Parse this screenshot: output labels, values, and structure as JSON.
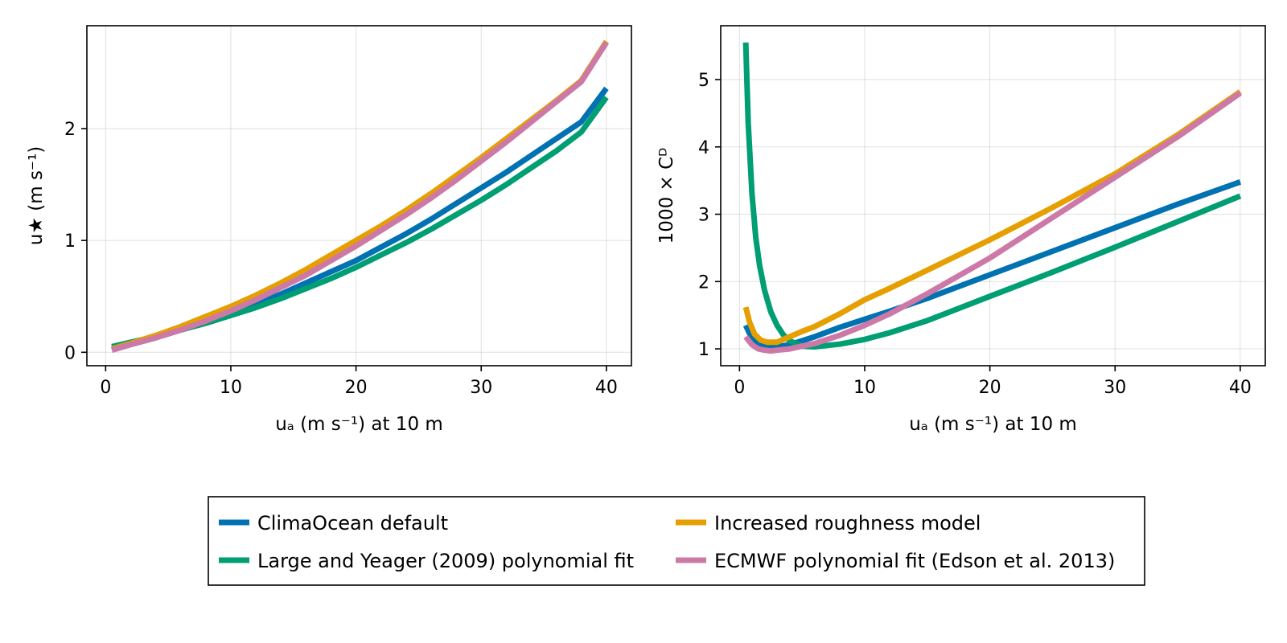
{
  "chart_data": [
    {
      "type": "line",
      "panel": "left",
      "xlabel": "uₐ (m s⁻¹) at 10 m",
      "ylabel": "u★ (m s⁻¹)",
      "xlim": [
        -1.5,
        42
      ],
      "ylim": [
        -0.12,
        2.92
      ],
      "xticks": [
        0,
        10,
        20,
        30,
        40
      ],
      "yticks": [
        0,
        1,
        2
      ],
      "grid": true,
      "series": [
        {
          "name": "ClimaOcean default",
          "color": "#0072b2",
          "x": [
            0.5,
            2,
            4,
            6,
            8,
            10,
            12,
            14,
            16,
            18,
            20,
            22,
            24,
            26,
            28,
            30,
            32,
            34,
            36,
            38,
            40
          ],
          "y": [
            0.02,
            0.07,
            0.13,
            0.2,
            0.27,
            0.35,
            0.43,
            0.52,
            0.62,
            0.72,
            0.82,
            0.94,
            1.06,
            1.19,
            1.33,
            1.47,
            1.61,
            1.76,
            1.91,
            2.06,
            2.36
          ]
        },
        {
          "name": "Large and Yeager (2009) polynomial fit",
          "color": "#009e73",
          "x": [
            0.5,
            2,
            4,
            6,
            8,
            10,
            12,
            14,
            16,
            18,
            20,
            22,
            24,
            26,
            28,
            30,
            32,
            34,
            36,
            38,
            40
          ],
          "y": [
            0.05,
            0.09,
            0.14,
            0.2,
            0.26,
            0.33,
            0.4,
            0.48,
            0.57,
            0.66,
            0.76,
            0.87,
            0.98,
            1.1,
            1.23,
            1.36,
            1.5,
            1.65,
            1.8,
            1.97,
            2.28
          ]
        },
        {
          "name": "Increased roughness model",
          "color": "#e69f00",
          "x": [
            0.5,
            2,
            4,
            6,
            8,
            10,
            12,
            14,
            16,
            18,
            20,
            22,
            24,
            26,
            28,
            30,
            32,
            34,
            36,
            38,
            40
          ],
          "y": [
            0.03,
            0.08,
            0.15,
            0.23,
            0.32,
            0.41,
            0.51,
            0.62,
            0.74,
            0.87,
            1.0,
            1.13,
            1.27,
            1.42,
            1.58,
            1.74,
            1.91,
            2.08,
            2.25,
            2.43,
            2.78
          ]
        },
        {
          "name": "ECMWF polynomial fit (Edson et al. 2013)",
          "color": "#cc79a7",
          "x": [
            0.5,
            2,
            4,
            6,
            8,
            10,
            12,
            14,
            16,
            18,
            20,
            22,
            24,
            26,
            28,
            30,
            32,
            34,
            36,
            38,
            40
          ],
          "y": [
            0.02,
            0.07,
            0.13,
            0.2,
            0.28,
            0.37,
            0.47,
            0.58,
            0.69,
            0.82,
            0.95,
            1.09,
            1.23,
            1.38,
            1.54,
            1.71,
            1.88,
            2.06,
            2.24,
            2.42,
            2.77
          ]
        }
      ]
    },
    {
      "type": "line",
      "panel": "right",
      "xlabel": "uₐ (m s⁻¹) at 10 m",
      "ylabel": "1000 × Cᴰ",
      "xlim": [
        -1.5,
        42
      ],
      "ylim": [
        0.75,
        5.8
      ],
      "xticks": [
        0,
        10,
        20,
        30,
        40
      ],
      "yticks": [
        1,
        2,
        3,
        4,
        5
      ],
      "grid": true,
      "series": [
        {
          "name": "ClimaOcean default",
          "color": "#0072b2",
          "x": [
            0.5,
            1,
            1.5,
            2,
            3,
            4,
            5,
            6,
            8,
            10,
            12,
            15,
            20,
            25,
            30,
            35,
            40
          ],
          "y": [
            1.35,
            1.15,
            1.06,
            1.03,
            1.03,
            1.06,
            1.12,
            1.18,
            1.32,
            1.44,
            1.56,
            1.75,
            2.1,
            2.45,
            2.8,
            3.15,
            3.48
          ]
        },
        {
          "name": "Large and Yeager (2009) polynomial fit",
          "color": "#009e73",
          "x": [
            0.5,
            0.7,
            1,
            1.3,
            1.6,
            2,
            2.5,
            3,
            3.5,
            4,
            5,
            6,
            8,
            10,
            12,
            15,
            20,
            25,
            30,
            35,
            40
          ],
          "y": [
            5.55,
            4.35,
            3.3,
            2.65,
            2.25,
            1.87,
            1.55,
            1.35,
            1.21,
            1.12,
            1.04,
            1.03,
            1.07,
            1.14,
            1.24,
            1.42,
            1.78,
            2.14,
            2.51,
            2.89,
            3.27
          ]
        },
        {
          "name": "Increased roughness model",
          "color": "#e69f00",
          "x": [
            0.5,
            0.8,
            1.2,
            1.7,
            2.2,
            3,
            4,
            5,
            6,
            8,
            10,
            12,
            15,
            20,
            25,
            30,
            35,
            40
          ],
          "y": [
            1.62,
            1.4,
            1.22,
            1.13,
            1.1,
            1.1,
            1.18,
            1.26,
            1.33,
            1.52,
            1.73,
            1.9,
            2.17,
            2.62,
            3.1,
            3.6,
            4.18,
            4.82
          ]
        },
        {
          "name": "ECMWF polynomial fit (Edson et al. 2013)",
          "color": "#cc79a7",
          "x": [
            0.5,
            1,
            1.5,
            2,
            2.5,
            3,
            4,
            5,
            6,
            8,
            10,
            12,
            15,
            20,
            25,
            30,
            35,
            40
          ],
          "y": [
            1.18,
            1.06,
            1.0,
            0.98,
            0.97,
            0.98,
            1.0,
            1.04,
            1.08,
            1.2,
            1.35,
            1.52,
            1.82,
            2.35,
            2.95,
            3.55,
            4.15,
            4.8
          ]
        }
      ]
    }
  ],
  "legend": {
    "placement": "bottom-center",
    "columns": 2,
    "entries": [
      {
        "label": "ClimaOcean default",
        "color": "#0072b2"
      },
      {
        "label": "Increased roughness model",
        "color": "#e69f00"
      },
      {
        "label": "Large and Yeager (2009) polynomial fit",
        "color": "#009e73"
      },
      {
        "label": "ECMWF polynomial fit (Edson et al. 2013)",
        "color": "#cc79a7"
      }
    ]
  }
}
